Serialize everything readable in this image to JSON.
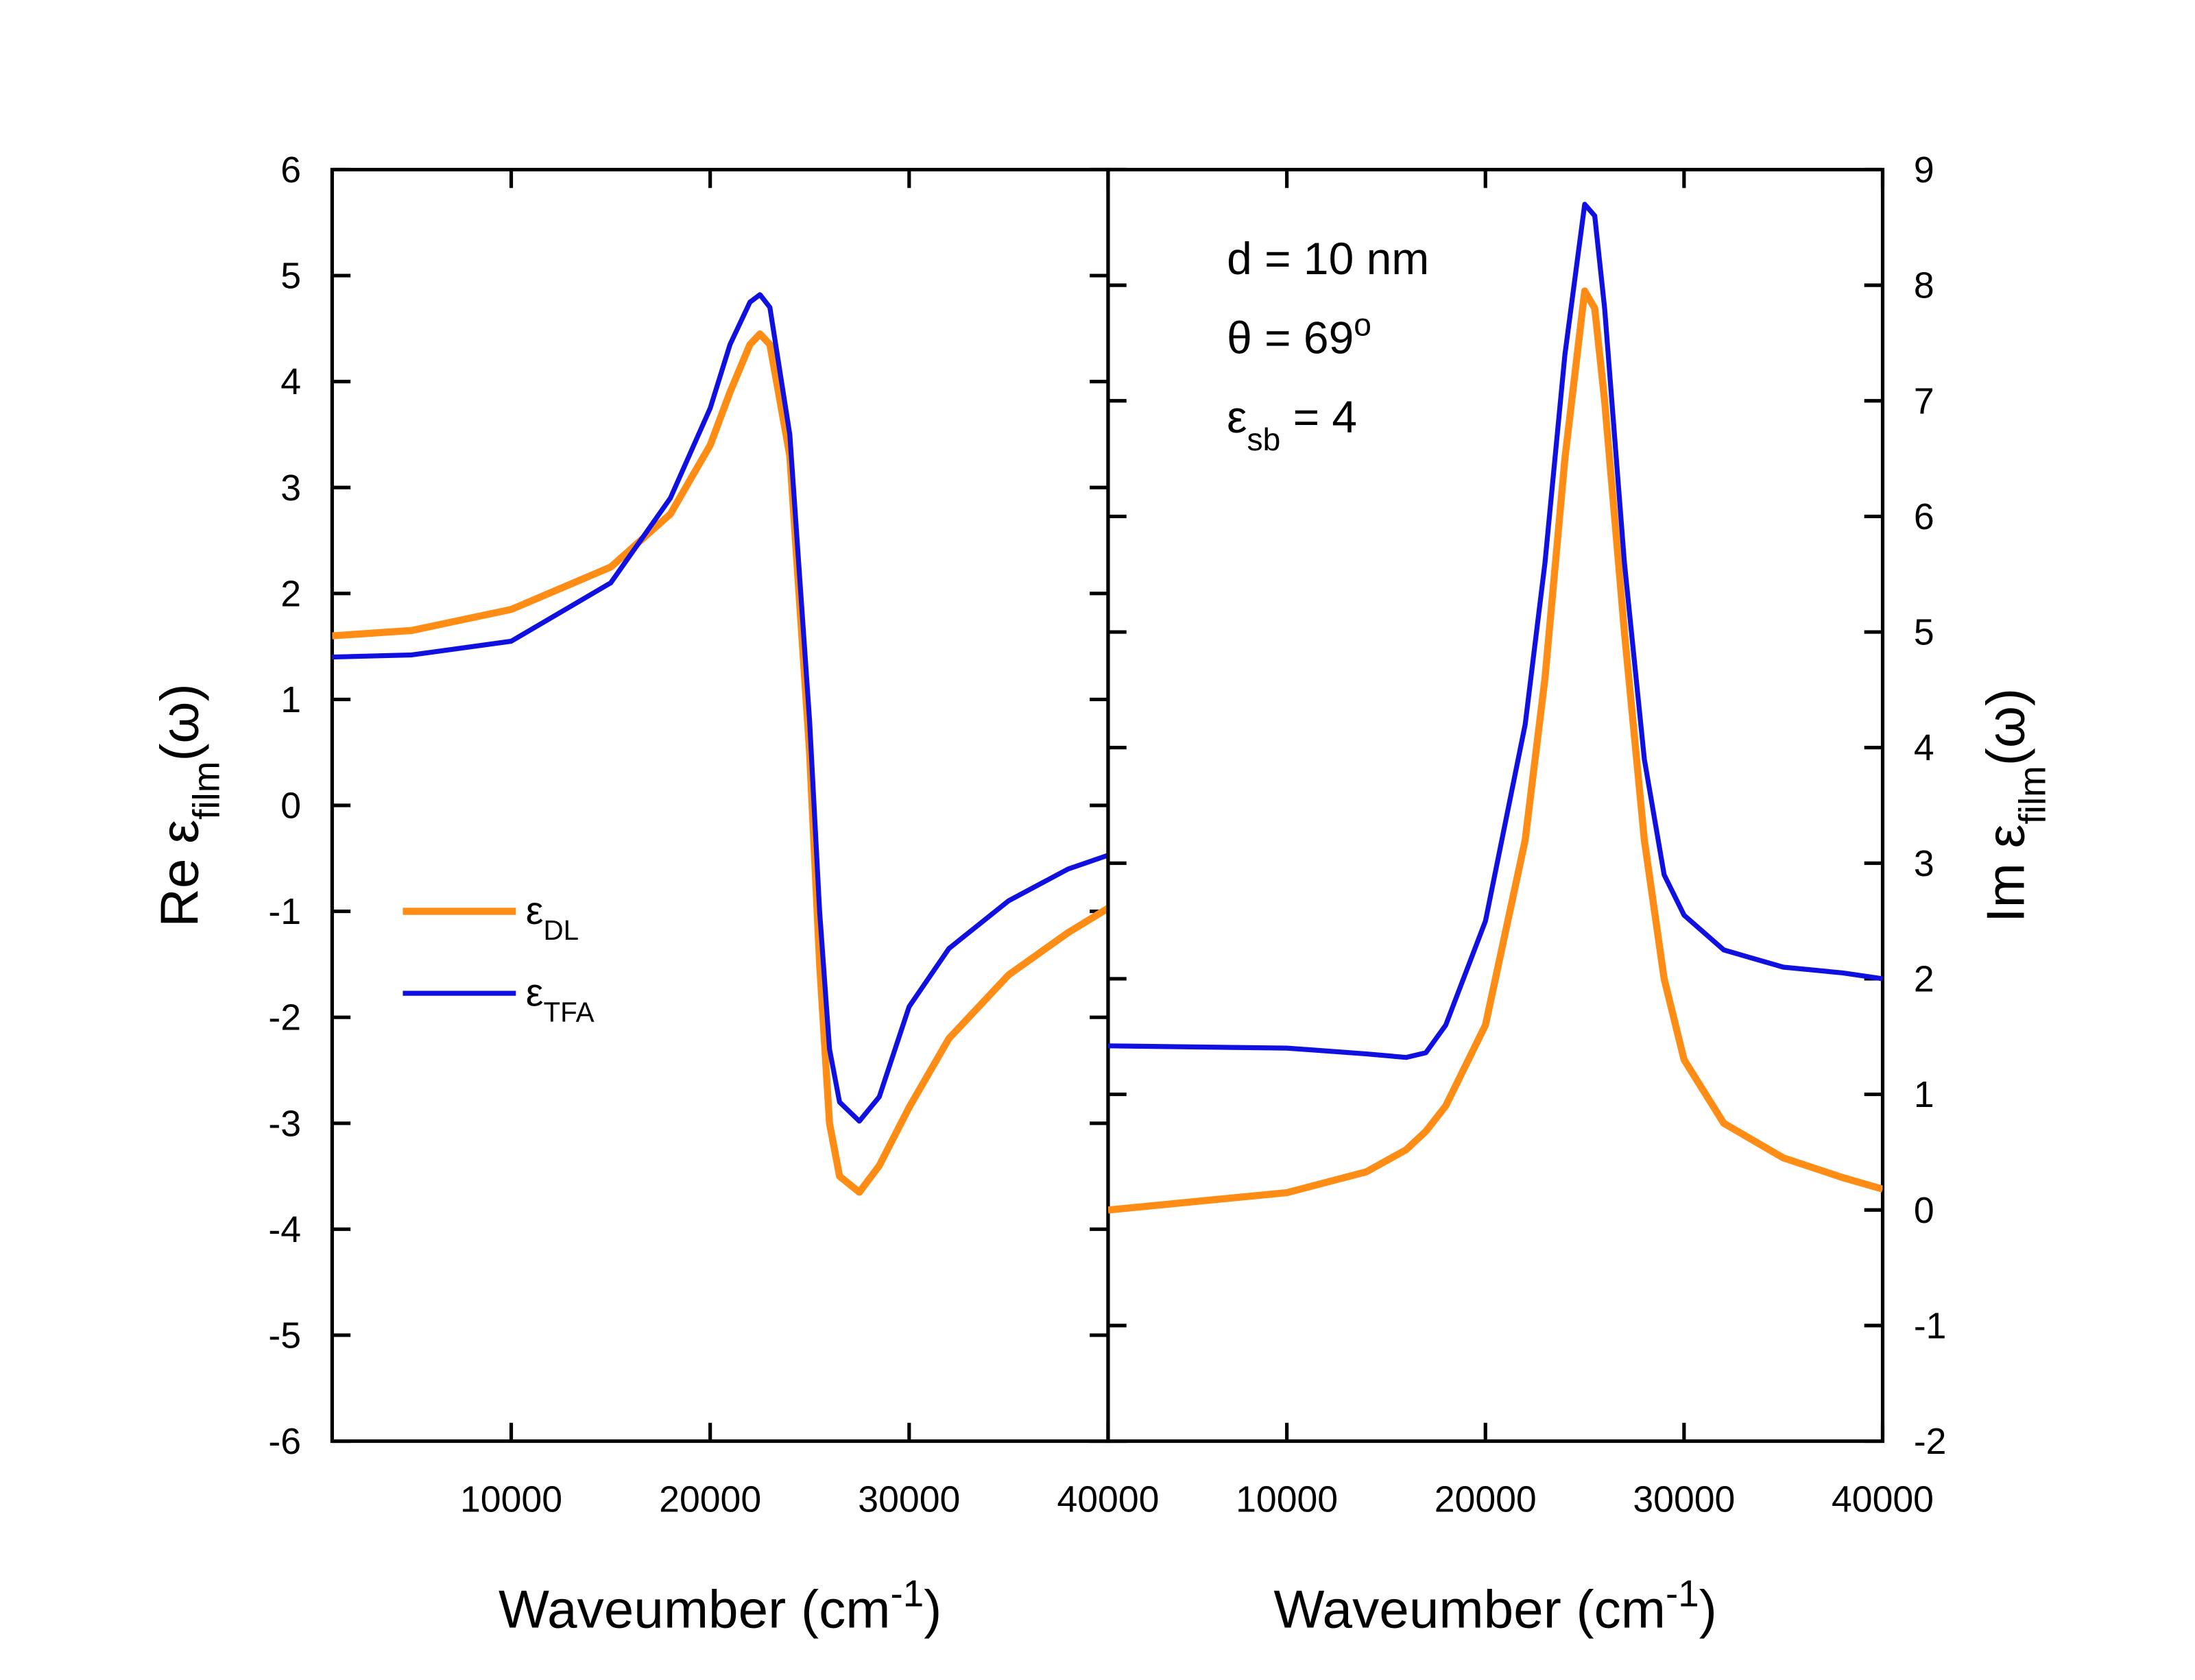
{
  "chart_data": [
    {
      "type": "line",
      "xlabel": {
        "text": "Waveumber (cm",
        "sup": "-1",
        "tail": ")"
      },
      "ylabel": {
        "text": "Re ε",
        "sub": "film",
        "tail": "(ω)"
      },
      "xlim": [
        1000,
        40000
      ],
      "xticks": [
        10000,
        20000,
        30000,
        40000
      ],
      "ylim": [
        -6,
        6
      ],
      "yticks": [
        -6,
        -5,
        -4,
        -3,
        -2,
        -1,
        0,
        1,
        2,
        3,
        4,
        5,
        6
      ],
      "x": [
        1000,
        5000,
        10000,
        15000,
        18000,
        20000,
        21000,
        22000,
        22500,
        23000,
        24000,
        25000,
        25500,
        26000,
        26500,
        27500,
        28500,
        30000,
        32000,
        35000,
        38000,
        40000
      ],
      "legend": "center-left",
      "series": [
        {
          "name": "ε",
          "name_sub": "DL",
          "color": "#ff8c14",
          "values": [
            1.6,
            1.65,
            1.85,
            2.25,
            2.75,
            3.4,
            3.9,
            4.35,
            4.45,
            4.35,
            3.3,
            0.5,
            -1.5,
            -3.0,
            -3.5,
            -3.65,
            -3.4,
            -2.85,
            -2.2,
            -1.6,
            -1.2,
            -0.97
          ]
        },
        {
          "name": "ε",
          "name_sub": "TFA",
          "color": "#1010e0",
          "values": [
            1.4,
            1.42,
            1.55,
            2.1,
            2.9,
            3.75,
            4.35,
            4.75,
            4.82,
            4.7,
            3.5,
            0.8,
            -1.0,
            -2.3,
            -2.8,
            -2.98,
            -2.75,
            -1.9,
            -1.35,
            -0.9,
            -0.6,
            -0.47
          ]
        }
      ]
    },
    {
      "type": "line",
      "xlabel": {
        "text": "Waveumber (cm",
        "sup": "-1",
        "tail": ")"
      },
      "ylabel": {
        "text": "Im ε",
        "sub": "film",
        "tail": "(ω)"
      },
      "xlim": [
        1000,
        40000
      ],
      "xticks": [
        10000,
        20000,
        30000,
        40000
      ],
      "y2lim": [
        -2,
        9
      ],
      "y2ticks": [
        -2,
        -1,
        0,
        1,
        2,
        3,
        4,
        5,
        6,
        7,
        8,
        9
      ],
      "annotations": [
        {
          "text": "d = 10 nm"
        },
        {
          "text": "θ = 69",
          "sup": "o"
        },
        {
          "text": "ε",
          "sub": "sb",
          "tail": " = 4"
        }
      ],
      "x": [
        1000,
        10000,
        14000,
        16000,
        17000,
        18000,
        20000,
        22000,
        23000,
        24000,
        25000,
        25500,
        26000,
        27000,
        28000,
        29000,
        30000,
        32000,
        35000,
        38000,
        40000
      ],
      "series": [
        {
          "name": "ε",
          "name_sub": "DL",
          "color": "#ff8c14",
          "axis": "y2",
          "values": [
            0.0,
            0.15,
            0.33,
            0.52,
            0.68,
            0.9,
            1.6,
            3.2,
            4.6,
            6.5,
            7.95,
            7.8,
            7.0,
            5.0,
            3.2,
            2.0,
            1.3,
            0.75,
            0.45,
            0.28,
            0.18
          ]
        },
        {
          "name": "ε",
          "name_sub": "TFA",
          "color": "#1010e0",
          "axis": "y2",
          "values": [
            1.42,
            1.4,
            1.35,
            1.32,
            1.36,
            1.6,
            2.5,
            4.2,
            5.6,
            7.4,
            8.7,
            8.6,
            7.8,
            5.6,
            3.9,
            2.9,
            2.55,
            2.25,
            2.1,
            2.05,
            2.0
          ]
        }
      ]
    }
  ]
}
